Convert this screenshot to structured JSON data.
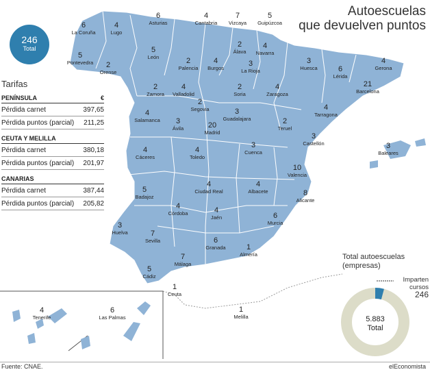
{
  "title": {
    "line1": "Autoescuelas",
    "line2": "que devuelven puntos"
  },
  "total_badge": {
    "value": "246",
    "label": "Total"
  },
  "tarifas": {
    "heading": "Tarifas",
    "sections": [
      {
        "name": "PENÍNSULA",
        "currency": "€",
        "rows": [
          {
            "label": "Pérdida carnet",
            "value": "397,65"
          },
          {
            "label": "Pérdida puntos (parcial)",
            "value": "211,25"
          }
        ]
      },
      {
        "name": "CEUTA Y MELILLA",
        "currency": "",
        "rows": [
          {
            "label": "Pérdida carnet",
            "value": "380,18"
          },
          {
            "label": "Pérdida puntos (parcial)",
            "value": "201,97"
          }
        ]
      },
      {
        "name": "CANARIAS",
        "currency": "",
        "rows": [
          {
            "label": "Pérdida carnet",
            "value": "387,44"
          },
          {
            "label": "Pérdida puntos (parcial)",
            "value": "205,82"
          }
        ]
      }
    ]
  },
  "provinces": [
    {
      "name": "La Coruña",
      "value": "6"
    },
    {
      "name": "Lugo",
      "value": "4"
    },
    {
      "name": "Asturias",
      "value": "6"
    },
    {
      "name": "Cantabria",
      "value": "4"
    },
    {
      "name": "Vizcaya",
      "value": "7"
    },
    {
      "name": "Guipúzcoa",
      "value": "5"
    },
    {
      "name": "Pontevedra",
      "value": "5"
    },
    {
      "name": "Orense",
      "value": "2"
    },
    {
      "name": "León",
      "value": "5"
    },
    {
      "name": "Palencia",
      "value": "2"
    },
    {
      "name": "Burgos",
      "value": "4"
    },
    {
      "name": "Álava",
      "value": "2"
    },
    {
      "name": "Navarra",
      "value": "4"
    },
    {
      "name": "La Rioja",
      "value": "3"
    },
    {
      "name": "Huesca",
      "value": "3"
    },
    {
      "name": "Lérida",
      "value": "6"
    },
    {
      "name": "Gerona",
      "value": "4"
    },
    {
      "name": "Barcelona",
      "value": "21"
    },
    {
      "name": "Zamora",
      "value": "2"
    },
    {
      "name": "Valladolid",
      "value": "4"
    },
    {
      "name": "Soria",
      "value": "2"
    },
    {
      "name": "Zaragoza",
      "value": "4"
    },
    {
      "name": "Tarragona",
      "value": "4"
    },
    {
      "name": "Segovia",
      "value": "2"
    },
    {
      "name": "Salamanca",
      "value": "4"
    },
    {
      "name": "Ávila",
      "value": "3"
    },
    {
      "name": "Guadalajara",
      "value": "3"
    },
    {
      "name": "Madrid",
      "value": "20"
    },
    {
      "name": "Teruel",
      "value": "2"
    },
    {
      "name": "Castellón",
      "value": "3"
    },
    {
      "name": "Cáceres",
      "value": "4"
    },
    {
      "name": "Toledo",
      "value": "4"
    },
    {
      "name": "Cuenca",
      "value": "3"
    },
    {
      "name": "Valencia",
      "value": "10"
    },
    {
      "name": "Baleares",
      "value": "3"
    },
    {
      "name": "Badajoz",
      "value": "5"
    },
    {
      "name": "Ciudad Real",
      "value": "4"
    },
    {
      "name": "Albacete",
      "value": "4"
    },
    {
      "name": "Alicante",
      "value": "8"
    },
    {
      "name": "Córdoba",
      "value": "4"
    },
    {
      "name": "Jaén",
      "value": "4"
    },
    {
      "name": "Murcia",
      "value": "6"
    },
    {
      "name": "Huelva",
      "value": "3"
    },
    {
      "name": "Sevilla",
      "value": "7"
    },
    {
      "name": "Granada",
      "value": "6"
    },
    {
      "name": "Almería",
      "value": "1"
    },
    {
      "name": "Málaga",
      "value": "7"
    },
    {
      "name": "Cádiz",
      "value": "5"
    },
    {
      "name": "Ceuta",
      "value": "1"
    },
    {
      "name": "Melilla",
      "value": "1"
    },
    {
      "name": "Tenerife",
      "value": "4"
    },
    {
      "name": "Las Palmas",
      "value": "6"
    }
  ],
  "donut": {
    "title_line1": "Total autoescuelas",
    "title_line2": "(empresas)",
    "total_value": "5.883",
    "total_label": "Total",
    "highlight_label_line1": "Imparten",
    "highlight_label_line2": "cursos",
    "highlight_value": "246",
    "highlight_fraction": 0.0418,
    "color_highlight": "#2f7fae",
    "color_rest": "#dcdcc8"
  },
  "colors": {
    "land": "#8fb3d6",
    "border": "#ffffff",
    "badge": "#2f7fae"
  },
  "source": "Fuente: CNAE.",
  "brand": "elEconomista"
}
